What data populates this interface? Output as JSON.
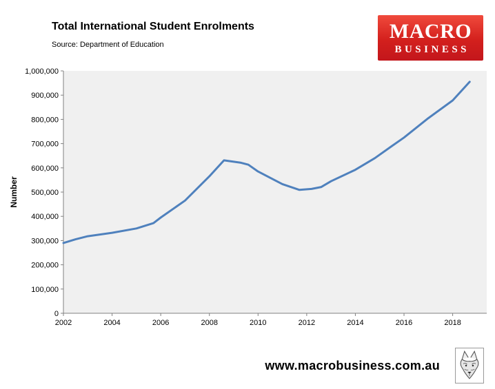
{
  "header": {
    "title": "Total International Student Enrolments",
    "source": "Source: Department of Education"
  },
  "logo": {
    "line1": "MACRO",
    "line2": "BUSINESS",
    "bg_color_top": "#F04A3C",
    "bg_color_bottom": "#C3161C",
    "text_color": "#FFFFFF"
  },
  "footer": {
    "url": "www.macrobusiness.com.au",
    "logo_icon": "wolf-sketch-icon"
  },
  "chart_data": {
    "type": "line",
    "title": "Total International Student Enrolments",
    "subtitle": "Source: Department of Education",
    "xlabel": "",
    "ylabel": "Number",
    "ylim": [
      0,
      1000000
    ],
    "ytick_step": 100000,
    "xlim": [
      2002,
      2019.4
    ],
    "xticks": [
      2002,
      2004,
      2006,
      2008,
      2010,
      2012,
      2014,
      2016,
      2018
    ],
    "grid": false,
    "legend": "none",
    "line_color": "#4F81BD",
    "plot_bg": "#F0F0F0",
    "axis_color": "#808080",
    "series": [
      {
        "name": "Total international student enrolments",
        "points": [
          [
            2002,
            290000
          ],
          [
            2002.5,
            305000
          ],
          [
            2003,
            318000
          ],
          [
            2004,
            332000
          ],
          [
            2005,
            350000
          ],
          [
            2005.7,
            372000
          ],
          [
            2006,
            395000
          ],
          [
            2007,
            465000
          ],
          [
            2008,
            565000
          ],
          [
            2008.6,
            631000
          ],
          [
            2009.3,
            621000
          ],
          [
            2009.6,
            613000
          ],
          [
            2010,
            585000
          ],
          [
            2011,
            533000
          ],
          [
            2011.7,
            509000
          ],
          [
            2012.2,
            513000
          ],
          [
            2012.6,
            521000
          ],
          [
            2013,
            545000
          ],
          [
            2014,
            592000
          ],
          [
            2014.8,
            640000
          ],
          [
            2015.5,
            690000
          ],
          [
            2016,
            725000
          ],
          [
            2017,
            805000
          ],
          [
            2018,
            878000
          ],
          [
            2018.7,
            955000
          ]
        ]
      }
    ]
  }
}
